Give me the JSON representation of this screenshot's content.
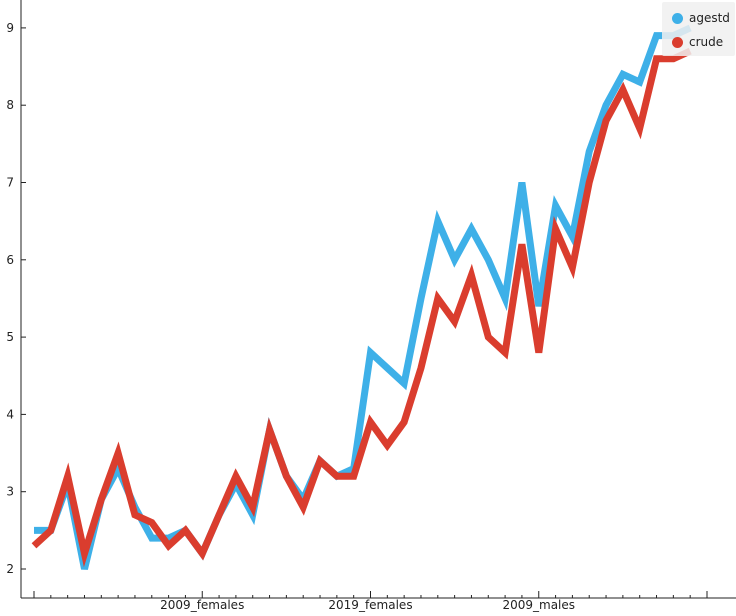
{
  "chart_data": {
    "type": "line",
    "title": "",
    "xlabel": "",
    "ylabel": "",
    "x_tick_labels": [
      {
        "index": 10,
        "label": "2009_females"
      },
      {
        "index": 20,
        "label": "2019_females"
      },
      {
        "index": 30,
        "label": "2009_males"
      }
    ],
    "x_count": 41,
    "ylim": [
      1.8,
      9.2
    ],
    "y_ticks": [
      2,
      3,
      4,
      5,
      6,
      7,
      8,
      9
    ],
    "grid": false,
    "legend_position": "top-right",
    "series": [
      {
        "name": "agestd",
        "color": "#3eb0e8",
        "values": [
          2.5,
          2.5,
          3.1,
          2.0,
          2.9,
          3.3,
          2.8,
          2.4,
          2.4,
          2.5,
          2.2,
          2.7,
          3.1,
          2.7,
          3.8,
          3.2,
          2.9,
          3.4,
          3.2,
          3.3,
          4.8,
          4.6,
          4.4,
          5.5,
          6.5,
          6.0,
          6.4,
          6.0,
          5.5,
          7.0,
          5.4,
          6.7,
          6.3,
          7.4,
          8.0,
          8.4,
          8.3,
          8.9,
          8.9,
          9.0
        ]
      },
      {
        "name": "crude",
        "color": "#da3d2e",
        "values": [
          2.3,
          2.5,
          3.2,
          2.2,
          2.9,
          3.5,
          2.7,
          2.6,
          2.3,
          2.5,
          2.2,
          2.7,
          3.2,
          2.8,
          3.8,
          3.2,
          2.8,
          3.4,
          3.2,
          3.2,
          3.9,
          3.6,
          3.9,
          4.6,
          5.5,
          5.2,
          5.8,
          5.0,
          4.8,
          6.2,
          4.8,
          6.4,
          5.9,
          7.0,
          7.8,
          8.2,
          7.7,
          8.6,
          8.6,
          8.7
        ]
      }
    ]
  }
}
